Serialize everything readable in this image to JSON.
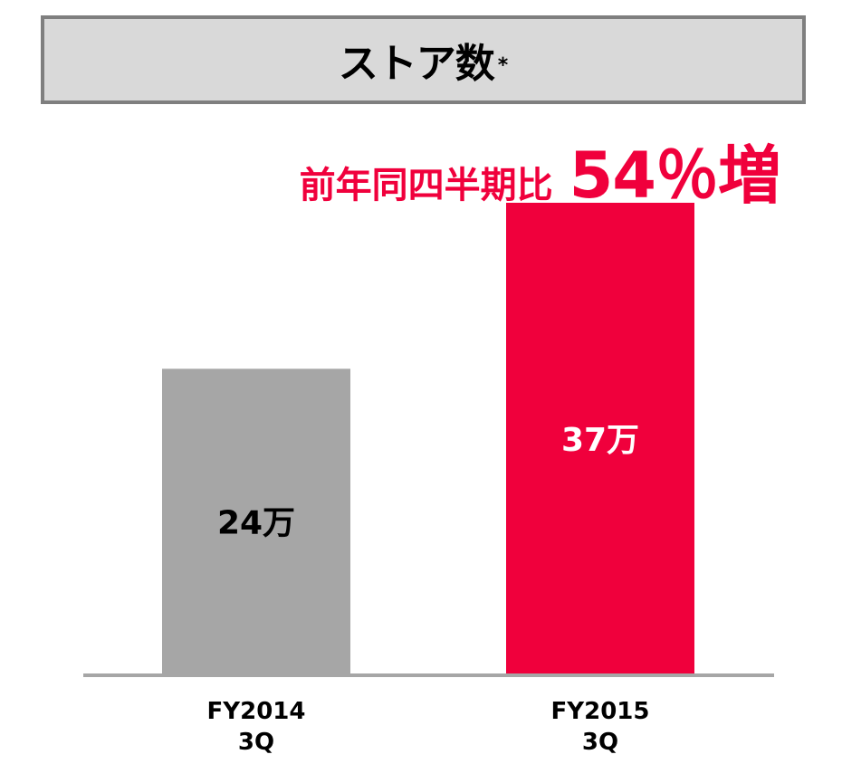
{
  "header": {
    "title": "ストア数",
    "title_mark": "*"
  },
  "growth": {
    "label": "前年同四半期比",
    "value": "54％増",
    "color": "#f0003c"
  },
  "chart_data": {
    "type": "bar",
    "categories": [
      [
        "FY2014",
        "3Q"
      ],
      [
        "FY2015",
        "3Q"
      ]
    ],
    "values": [
      24,
      37
    ],
    "value_labels": [
      "24万",
      "37万"
    ],
    "bar_colors": [
      "#a6a6a6",
      "#f0003c"
    ],
    "label_colors": [
      "#000000",
      "#ffffff"
    ],
    "axis_color": "#a6a6a6",
    "grid": false,
    "ylim": [
      0,
      37
    ]
  }
}
